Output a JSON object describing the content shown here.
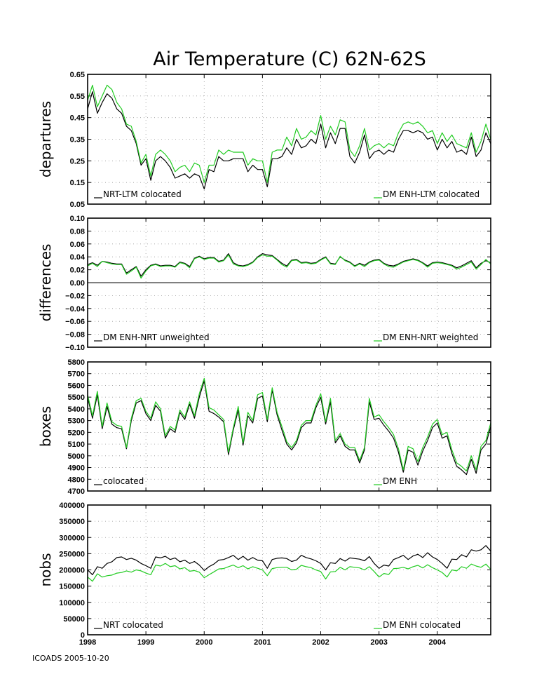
{
  "title": "Air Temperature (C) 62N-62S",
  "footer": "ICOADS 2005-10-20",
  "colors": {
    "series_a": "#000000",
    "series_b": "#22cc22"
  },
  "chart_data": [
    {
      "type": "line",
      "ylabel": "departures",
      "ylim": [
        0.05,
        0.65
      ],
      "yticks": [
        "0.65",
        "0.55",
        "0.45",
        "0.35",
        "0.25",
        "0.15",
        "0.05"
      ],
      "xticks": [
        "1998",
        "1999",
        "2000",
        "2001",
        "2002",
        "2003",
        "2004"
      ],
      "xlim": [
        1998,
        2004.917
      ],
      "grid": true,
      "series": [
        {
          "name": "NRT-LTM colocated",
          "legend_position": "bottom-left",
          "values": [
            0.49,
            0.57,
            0.47,
            0.52,
            0.56,
            0.54,
            0.49,
            0.47,
            0.41,
            0.39,
            0.33,
            0.23,
            0.26,
            0.16,
            0.25,
            0.27,
            0.25,
            0.22,
            0.17,
            0.18,
            0.19,
            0.17,
            0.19,
            0.18,
            0.12,
            0.21,
            0.2,
            0.27,
            0.25,
            0.25,
            0.26,
            0.26,
            0.26,
            0.2,
            0.23,
            0.21,
            0.21,
            0.13,
            0.26,
            0.26,
            0.27,
            0.31,
            0.28,
            0.35,
            0.31,
            0.32,
            0.35,
            0.33,
            0.42,
            0.31,
            0.38,
            0.33,
            0.4,
            0.4,
            0.27,
            0.24,
            0.29,
            0.37,
            0.26,
            0.29,
            0.3,
            0.28,
            0.3,
            0.29,
            0.35,
            0.39,
            0.39,
            0.38,
            0.39,
            0.38,
            0.35,
            0.36,
            0.3,
            0.35,
            0.31,
            0.34,
            0.29,
            0.3,
            0.28,
            0.36,
            0.27,
            0.3,
            0.38,
            0.33
          ]
        },
        {
          "name": "DM ENH-LTM colocated",
          "legend_position": "bottom-right",
          "values": [
            0.53,
            0.6,
            0.5,
            0.55,
            0.6,
            0.58,
            0.52,
            0.49,
            0.42,
            0.41,
            0.34,
            0.24,
            0.28,
            0.18,
            0.28,
            0.3,
            0.28,
            0.25,
            0.2,
            0.22,
            0.23,
            0.2,
            0.24,
            0.23,
            0.15,
            0.23,
            0.23,
            0.3,
            0.28,
            0.3,
            0.29,
            0.29,
            0.29,
            0.23,
            0.26,
            0.25,
            0.25,
            0.15,
            0.29,
            0.3,
            0.3,
            0.36,
            0.32,
            0.4,
            0.35,
            0.36,
            0.39,
            0.37,
            0.46,
            0.35,
            0.41,
            0.37,
            0.44,
            0.43,
            0.3,
            0.27,
            0.32,
            0.4,
            0.3,
            0.32,
            0.33,
            0.31,
            0.33,
            0.32,
            0.38,
            0.42,
            0.43,
            0.42,
            0.43,
            0.41,
            0.38,
            0.39,
            0.33,
            0.38,
            0.34,
            0.37,
            0.33,
            0.32,
            0.31,
            0.38,
            0.29,
            0.34,
            0.42,
            0.35
          ]
        }
      ]
    },
    {
      "type": "line",
      "ylabel": "differences",
      "ylim": [
        -0.1,
        0.1
      ],
      "yticks": [
        "0.10",
        "0.08",
        "0.06",
        "0.04",
        "0.02",
        "0.00",
        "−0.02",
        "−0.04",
        "−0.06",
        "−0.08",
        "−0.10"
      ],
      "xticks": [
        "1998",
        "1999",
        "2000",
        "2001",
        "2002",
        "2003",
        "2004"
      ],
      "xlim": [
        1998,
        2004.917
      ],
      "zero_line": true,
      "grid": true,
      "series": [
        {
          "name": "DM ENH-NRT unweighted",
          "legend_position": "bottom-left",
          "values": [
            0.028,
            0.031,
            0.027,
            0.033,
            0.032,
            0.03,
            0.029,
            0.029,
            0.015,
            0.02,
            0.025,
            0.01,
            0.02,
            0.027,
            0.029,
            0.026,
            0.027,
            0.027,
            0.025,
            0.032,
            0.03,
            0.025,
            0.038,
            0.041,
            0.037,
            0.039,
            0.039,
            0.033,
            0.035,
            0.045,
            0.031,
            0.027,
            0.026,
            0.028,
            0.032,
            0.04,
            0.045,
            0.043,
            0.042,
            0.036,
            0.03,
            0.026,
            0.035,
            0.036,
            0.031,
            0.032,
            0.03,
            0.031,
            0.036,
            0.04,
            0.03,
            0.029,
            0.04,
            0.035,
            0.032,
            0.026,
            0.03,
            0.027,
            0.032,
            0.035,
            0.036,
            0.03,
            0.027,
            0.026,
            0.029,
            0.033,
            0.035,
            0.037,
            0.035,
            0.031,
            0.026,
            0.031,
            0.032,
            0.031,
            0.029,
            0.027,
            0.023,
            0.026,
            0.03,
            0.034,
            0.023,
            0.03,
            0.034,
            0.031
          ]
        },
        {
          "name": "DM ENH-NRT weighted",
          "legend_position": "bottom-right",
          "values": [
            0.026,
            0.03,
            0.025,
            0.033,
            0.031,
            0.029,
            0.028,
            0.028,
            0.013,
            0.018,
            0.024,
            0.007,
            0.018,
            0.026,
            0.028,
            0.025,
            0.026,
            0.026,
            0.024,
            0.031,
            0.029,
            0.023,
            0.037,
            0.04,
            0.036,
            0.038,
            0.038,
            0.032,
            0.034,
            0.043,
            0.029,
            0.026,
            0.025,
            0.027,
            0.031,
            0.039,
            0.043,
            0.041,
            0.041,
            0.035,
            0.028,
            0.024,
            0.034,
            0.035,
            0.03,
            0.031,
            0.029,
            0.03,
            0.035,
            0.039,
            0.029,
            0.028,
            0.041,
            0.034,
            0.031,
            0.025,
            0.029,
            0.025,
            0.031,
            0.034,
            0.035,
            0.029,
            0.025,
            0.024,
            0.028,
            0.032,
            0.034,
            0.036,
            0.034,
            0.03,
            0.024,
            0.03,
            0.031,
            0.03,
            0.028,
            0.026,
            0.021,
            0.024,
            0.028,
            0.032,
            0.021,
            0.028,
            0.036,
            0.029
          ]
        }
      ]
    },
    {
      "type": "line",
      "ylabel": "boxes",
      "ylim": [
        4700,
        5800
      ],
      "yticks": [
        "5800",
        "5700",
        "5600",
        "5500",
        "5400",
        "5300",
        "5200",
        "5100",
        "5000",
        "4900",
        "4800",
        "4700"
      ],
      "xticks": [
        "1998",
        "1999",
        "2000",
        "2001",
        "2002",
        "2003",
        "2004"
      ],
      "xlim": [
        1998,
        2004.917
      ],
      "grid": true,
      "series": [
        {
          "name": "colocated",
          "legend_position": "bottom-left",
          "values": [
            5500,
            5320,
            5520,
            5230,
            5420,
            5270,
            5240,
            5230,
            5060,
            5300,
            5450,
            5470,
            5360,
            5300,
            5430,
            5380,
            5150,
            5230,
            5200,
            5370,
            5310,
            5440,
            5320,
            5500,
            5640,
            5380,
            5360,
            5330,
            5290,
            5010,
            5220,
            5390,
            5090,
            5340,
            5280,
            5490,
            5510,
            5290,
            5560,
            5350,
            5220,
            5100,
            5050,
            5110,
            5240,
            5280,
            5280,
            5410,
            5500,
            5270,
            5460,
            5110,
            5170,
            5080,
            5050,
            5050,
            4940,
            5050,
            5460,
            5310,
            5320,
            5260,
            5210,
            5150,
            5030,
            4860,
            5050,
            5030,
            4920,
            5040,
            5130,
            5240,
            5280,
            5150,
            5170,
            5020,
            4910,
            4880,
            4840,
            4970,
            4850,
            5050,
            5100,
            5250
          ]
        },
        {
          "name": "DM ENH",
          "legend_position": "bottom-right",
          "values": [
            5520,
            5340,
            5550,
            5250,
            5450,
            5290,
            5260,
            5250,
            5070,
            5320,
            5470,
            5490,
            5380,
            5320,
            5460,
            5400,
            5170,
            5250,
            5220,
            5390,
            5330,
            5460,
            5340,
            5530,
            5660,
            5410,
            5390,
            5350,
            5310,
            5030,
            5240,
            5420,
            5110,
            5370,
            5300,
            5520,
            5540,
            5310,
            5580,
            5370,
            5250,
            5120,
            5070,
            5130,
            5260,
            5300,
            5300,
            5430,
            5530,
            5290,
            5490,
            5130,
            5190,
            5100,
            5070,
            5070,
            4960,
            5070,
            5490,
            5330,
            5350,
            5290,
            5240,
            5180,
            5060,
            4880,
            5080,
            5060,
            4950,
            5070,
            5160,
            5270,
            5310,
            5180,
            5200,
            5050,
            4940,
            4910,
            4870,
            5000,
            4880,
            5080,
            5130,
            5280
          ]
        }
      ]
    },
    {
      "type": "line",
      "ylabel": "nobs",
      "ylim": [
        0,
        400000
      ],
      "yticks": [
        "400000",
        "350000",
        "300000",
        "250000",
        "200000",
        "150000",
        "100000",
        "50000",
        "0"
      ],
      "xticks": [
        "1998",
        "1999",
        "2000",
        "2001",
        "2002",
        "2003",
        "2004"
      ],
      "xlim": [
        1998,
        2004.917
      ],
      "grid": true,
      "series": [
        {
          "name": "NRT colocated",
          "legend_position": "bottom-left",
          "values": [
            200000,
            185000,
            210000,
            205000,
            220000,
            225000,
            238000,
            240000,
            232000,
            236000,
            230000,
            220000,
            213000,
            205000,
            240000,
            237000,
            242000,
            232000,
            237000,
            225000,
            230000,
            220000,
            226000,
            215000,
            198000,
            210000,
            218000,
            230000,
            232000,
            238000,
            245000,
            232000,
            242000,
            230000,
            238000,
            230000,
            228000,
            205000,
            232000,
            236000,
            237000,
            235000,
            226000,
            230000,
            245000,
            238000,
            234000,
            228000,
            220000,
            200000,
            222000,
            220000,
            235000,
            227000,
            237000,
            235000,
            233000,
            228000,
            241000,
            220000,
            205000,
            215000,
            212000,
            232000,
            238000,
            245000,
            232000,
            243000,
            248000,
            238000,
            253000,
            240000,
            232000,
            220000,
            205000,
            233000,
            232000,
            247000,
            240000,
            262000,
            258000,
            262000,
            275000,
            258000
          ]
        },
        {
          "name": "DM ENH colocated",
          "legend_position": "bottom-right",
          "values": [
            178000,
            165000,
            188000,
            178000,
            182000,
            184000,
            190000,
            192000,
            197000,
            193000,
            200000,
            197000,
            190000,
            185000,
            215000,
            212000,
            220000,
            210000,
            213000,
            203000,
            207000,
            196000,
            198000,
            193000,
            176000,
            185000,
            194000,
            203000,
            204000,
            210000,
            215000,
            207000,
            213000,
            203000,
            210000,
            205000,
            200000,
            182000,
            204000,
            207000,
            208000,
            208000,
            200000,
            202000,
            214000,
            210000,
            207000,
            200000,
            195000,
            172000,
            194000,
            195000,
            208000,
            200000,
            210000,
            208000,
            206000,
            200000,
            210000,
            195000,
            178000,
            189000,
            186000,
            204000,
            205000,
            208000,
            203000,
            210000,
            214000,
            206000,
            216000,
            207000,
            200000,
            192000,
            178000,
            200000,
            197000,
            210000,
            205000,
            218000,
            212000,
            208000,
            218000,
            202000
          ]
        }
      ]
    }
  ]
}
